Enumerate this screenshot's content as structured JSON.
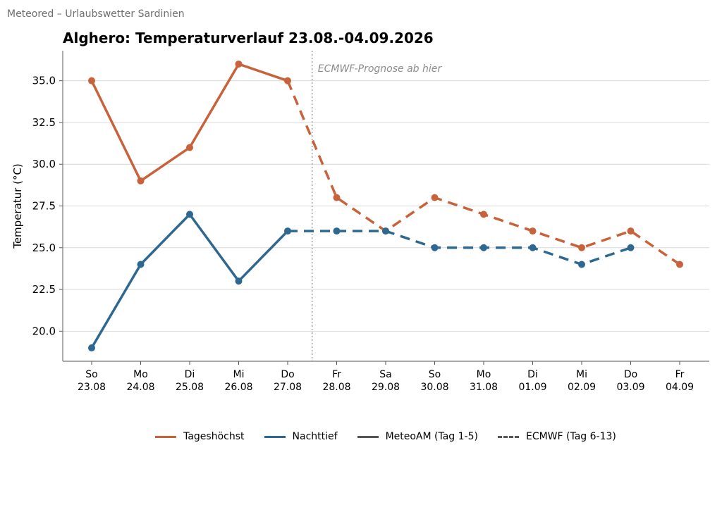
{
  "page": {
    "app_title": "Meteored – Urlaubswetter Sardinien"
  },
  "chart_data": {
    "type": "line",
    "title": "Alghero: Temperaturverlauf 23.08.-04.09.2026",
    "xlabel": "",
    "ylabel": "Temperatur (°C)",
    "ylim": [
      18.2,
      36.8
    ],
    "yticks": [
      "20.0",
      "22.5",
      "25.0",
      "27.5",
      "30.0",
      "32.5",
      "35.0"
    ],
    "grid": "horizontal",
    "legend_position": "bottom",
    "categories": [
      {
        "weekday": "So",
        "date": "23.08"
      },
      {
        "weekday": "Mo",
        "date": "24.08"
      },
      {
        "weekday": "Di",
        "date": "25.08"
      },
      {
        "weekday": "Mi",
        "date": "26.08"
      },
      {
        "weekday": "Do",
        "date": "27.08"
      },
      {
        "weekday": "Fr",
        "date": "28.08"
      },
      {
        "weekday": "Sa",
        "date": "29.08"
      },
      {
        "weekday": "So",
        "date": "30.08"
      },
      {
        "weekday": "Mo",
        "date": "31.08"
      },
      {
        "weekday": "Di",
        "date": "01.09"
      },
      {
        "weekday": "Mi",
        "date": "02.09"
      },
      {
        "weekday": "Do",
        "date": "03.09"
      },
      {
        "weekday": "Fr",
        "date": "04.09"
      }
    ],
    "series": [
      {
        "name": "Tageshöchst",
        "color": "#c8623a",
        "values": [
          35,
          29,
          31,
          36,
          35,
          28,
          26,
          28,
          27,
          26,
          25,
          26,
          24
        ]
      },
      {
        "name": "Nachttief",
        "color": "#2e6891",
        "values": [
          19,
          24,
          27,
          23,
          26,
          26,
          26,
          25,
          25,
          25,
          24,
          25,
          null
        ]
      }
    ],
    "forecast_split": {
      "last_solid_index": 4,
      "annotation": "ECMWF-Prognose ab hier"
    },
    "legend": [
      {
        "label": "Tageshöchst",
        "style": "solid",
        "color": "#c8623a"
      },
      {
        "label": "Nachttief",
        "style": "solid",
        "color": "#2e6891"
      },
      {
        "label": "MeteoAM (Tag 1-5)",
        "style": "solid",
        "color": "#555555"
      },
      {
        "label": "ECMWF (Tag 6-13)",
        "style": "dashed",
        "color": "#555555"
      }
    ]
  }
}
